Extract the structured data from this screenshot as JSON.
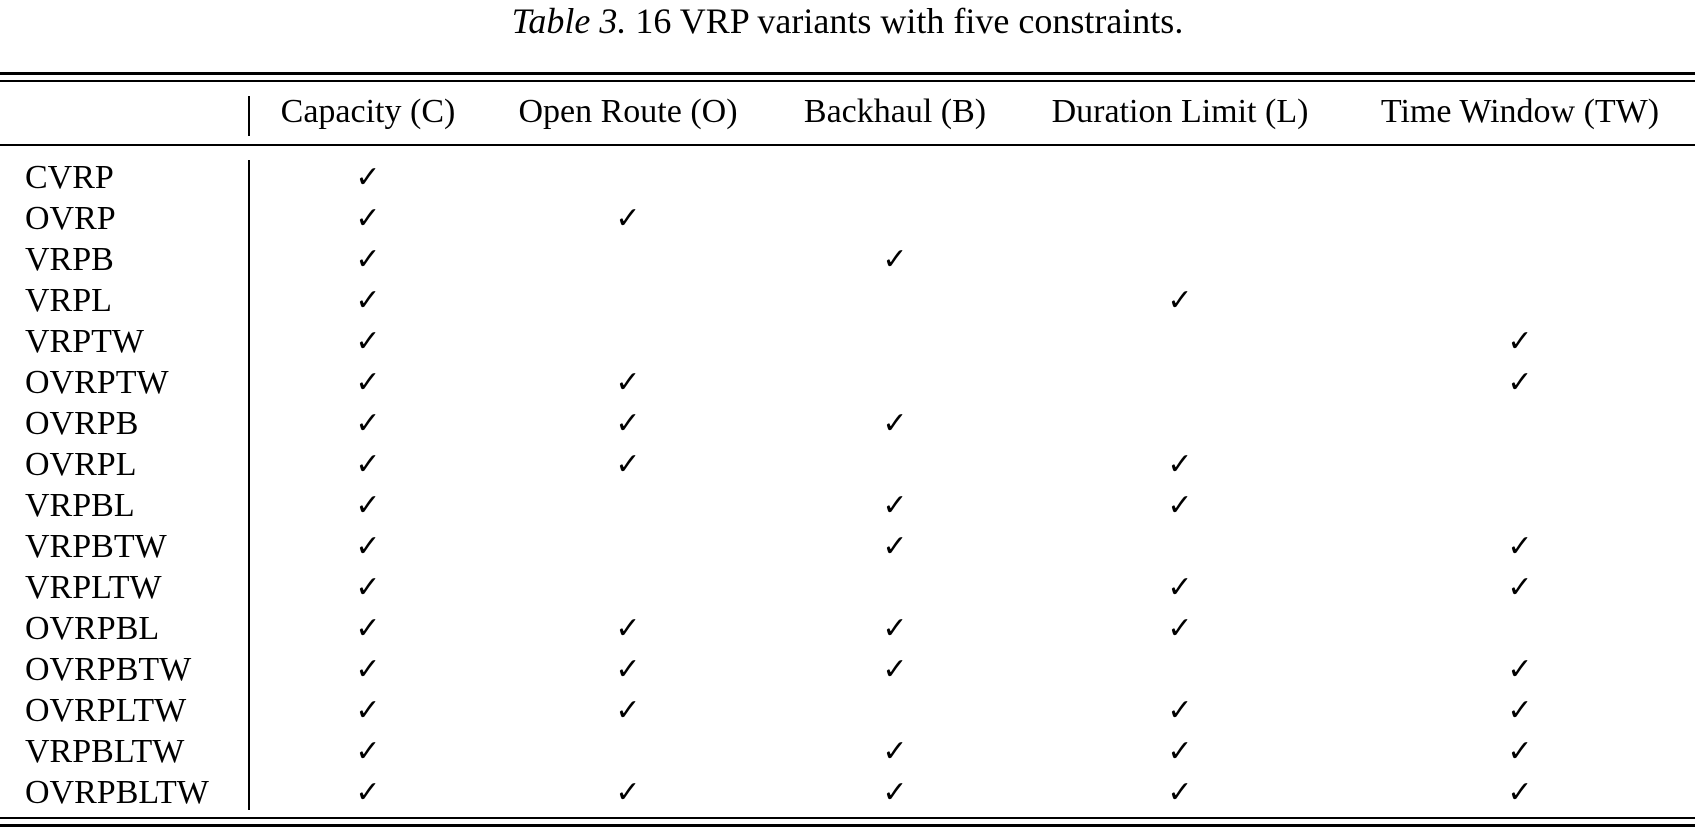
{
  "caption": {
    "label": "Table 3.",
    "text": " 16 VRP variants with five constraints."
  },
  "columns": [
    "Capacity (C)",
    "Open Route (O)",
    "Backhaul (B)",
    "Duration Limit (L)",
    "Time Window (TW)"
  ],
  "check_symbol": "✓",
  "rows": [
    {
      "name": "CVRP",
      "checks": [
        true,
        false,
        false,
        false,
        false
      ]
    },
    {
      "name": "OVRP",
      "checks": [
        true,
        true,
        false,
        false,
        false
      ]
    },
    {
      "name": "VRPB",
      "checks": [
        true,
        false,
        true,
        false,
        false
      ]
    },
    {
      "name": "VRPL",
      "checks": [
        true,
        false,
        false,
        true,
        false
      ]
    },
    {
      "name": "VRPTW",
      "checks": [
        true,
        false,
        false,
        false,
        true
      ]
    },
    {
      "name": "OVRPTW",
      "checks": [
        true,
        true,
        false,
        false,
        true
      ]
    },
    {
      "name": "OVRPB",
      "checks": [
        true,
        true,
        true,
        false,
        false
      ]
    },
    {
      "name": "OVRPL",
      "checks": [
        true,
        true,
        false,
        true,
        false
      ]
    },
    {
      "name": "VRPBL",
      "checks": [
        true,
        false,
        true,
        true,
        false
      ]
    },
    {
      "name": "VRPBTW",
      "checks": [
        true,
        false,
        true,
        false,
        true
      ]
    },
    {
      "name": "VRPLTW",
      "checks": [
        true,
        false,
        false,
        true,
        true
      ]
    },
    {
      "name": "OVRPBL",
      "checks": [
        true,
        true,
        true,
        true,
        false
      ]
    },
    {
      "name": "OVRPBTW",
      "checks": [
        true,
        true,
        true,
        false,
        true
      ]
    },
    {
      "name": "OVRPLTW",
      "checks": [
        true,
        true,
        false,
        true,
        true
      ]
    },
    {
      "name": "VRPBLTW",
      "checks": [
        true,
        false,
        true,
        true,
        true
      ]
    },
    {
      "name": "OVRPBLTW",
      "checks": [
        true,
        true,
        true,
        true,
        true
      ]
    }
  ]
}
